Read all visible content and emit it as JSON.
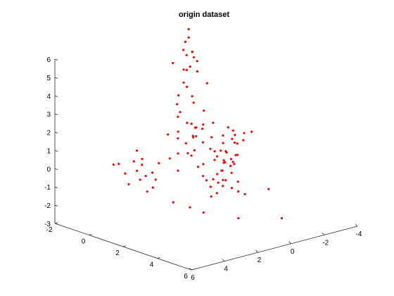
{
  "chart_data": {
    "type": "scatter",
    "projection": "3d",
    "title": "origin dataset",
    "xlabel": "",
    "ylabel": "",
    "zlabel": "",
    "grid": false,
    "legend": "none",
    "marker_color": "#ff0000",
    "x_axis": {
      "lim": [
        -2,
        6
      ],
      "ticks": [
        "-2",
        "0",
        "2",
        "4",
        "6"
      ]
    },
    "y_axis": {
      "lim": [
        -4,
        6
      ],
      "ticks": [
        "-4",
        "-2",
        "0",
        "2",
        "4",
        "6"
      ]
    },
    "z_axis": {
      "lim": [
        -3,
        6
      ],
      "ticks": [
        "-3",
        "-2",
        "-1",
        "0",
        "1",
        "2",
        "3",
        "4",
        "5",
        "6"
      ]
    },
    "series": [
      {
        "points": [
          [
            0.1,
            0.1,
            6.9
          ],
          [
            0.0,
            0.2,
            6.2
          ],
          [
            0.6,
            0.4,
            5.9
          ],
          [
            -0.5,
            -0.2,
            5.5
          ],
          [
            0.3,
            0.0,
            5.4
          ],
          [
            0.8,
            0.6,
            6.0
          ],
          [
            -0.3,
            -0.4,
            4.6
          ],
          [
            0.4,
            -0.1,
            5.2
          ],
          [
            0.0,
            0.3,
            4.7
          ],
          [
            -0.6,
            -0.5,
            4.3
          ],
          [
            0.7,
            0.2,
            4.8
          ],
          [
            0.2,
            0.5,
            4.1
          ],
          [
            -0.2,
            -0.1,
            3.6
          ],
          [
            0.5,
            0.3,
            3.4
          ],
          [
            0.1,
            -0.2,
            2.8
          ],
          [
            -0.4,
            0.1,
            2.2
          ],
          [
            0.6,
            -0.3,
            2.5
          ],
          [
            0.3,
            0.4,
            1.9
          ],
          [
            -0.1,
            -0.5,
            1.3
          ],
          [
            0.9,
            0.1,
            1.7
          ],
          [
            0.2,
            0.2,
            6.5
          ],
          [
            -0.8,
            -0.7,
            5.0
          ],
          [
            0.5,
            -0.6,
            3.9
          ],
          [
            0.0,
            0.7,
            2.9
          ],
          [
            -0.3,
            0.3,
            3.2
          ],
          [
            -1.5,
            -2.0,
            0.5
          ],
          [
            -1.2,
            -1.4,
            -0.8
          ],
          [
            -0.9,
            -1.8,
            0.9
          ],
          [
            -1.6,
            -1.0,
            1.3
          ],
          [
            -1.3,
            -2.2,
            -0.3
          ],
          [
            -1.0,
            -1.6,
            -1.4
          ],
          [
            -1.8,
            -1.2,
            0.0
          ],
          [
            -0.7,
            -2.1,
            0.2
          ],
          [
            -1.4,
            -0.8,
            -0.6
          ],
          [
            -1.1,
            -1.3,
            1.0
          ],
          [
            -1.7,
            -1.7,
            -0.9
          ],
          [
            -0.8,
            -1.1,
            0.4
          ],
          [
            -1.9,
            -2.4,
            -0.2
          ],
          [
            -0.6,
            -1.5,
            -1.1
          ],
          [
            -1.2,
            -0.6,
            0.7
          ],
          [
            -2.0,
            -1.9,
            -0.5
          ],
          [
            -1.0,
            -2.5,
            0.8
          ],
          [
            -1.5,
            -0.9,
            -1.6
          ],
          [
            -0.9,
            -2.0,
            -2.2
          ],
          [
            -1.3,
            -1.6,
            0.2
          ],
          [
            0.8,
            -1.3,
            -0.4
          ],
          [
            1.2,
            -1.0,
            0.3
          ],
          [
            0.5,
            -1.6,
            -0.7
          ],
          [
            1.5,
            -1.4,
            0.1
          ],
          [
            0.9,
            -0.8,
            -1.0
          ],
          [
            1.1,
            -1.8,
            0.5
          ],
          [
            0.6,
            -1.1,
            -0.2
          ],
          [
            1.4,
            -0.6,
            -0.6
          ],
          [
            0.7,
            -1.9,
            0.6
          ],
          [
            1.0,
            -1.2,
            -1.4
          ],
          [
            1.3,
            -1.5,
            0.0
          ],
          [
            0.4,
            -0.9,
            0.2
          ],
          [
            1.6,
            -1.1,
            -0.3
          ],
          [
            0.8,
            -1.7,
            -0.8
          ],
          [
            1.2,
            -0.7,
            0.4
          ],
          [
            2.5,
            0.5,
            -0.5
          ],
          [
            2.8,
            0.9,
            0.2
          ],
          [
            2.2,
            0.2,
            -1.0
          ],
          [
            3.0,
            1.3,
            -0.3
          ],
          [
            2.6,
            0.0,
            0.4
          ],
          [
            2.4,
            1.1,
            -1.3
          ],
          [
            3.1,
            0.6,
            0.1
          ],
          [
            2.7,
            -0.2,
            -0.7
          ],
          [
            2.3,
            0.8,
            0.6
          ],
          [
            2.9,
            1.5,
            -0.1
          ],
          [
            3.3,
            0.4,
            -0.9
          ],
          [
            2.1,
            -0.4,
            0.3
          ],
          [
            3.5,
            1.0,
            -0.5
          ],
          [
            2.5,
            1.7,
            0.0
          ],
          [
            3.2,
            -0.1,
            -1.2
          ],
          [
            -0.5,
            2.3,
            -0.2
          ],
          [
            0.0,
            2.8,
            0.4
          ],
          [
            -0.8,
            3.0,
            -0.6
          ],
          [
            0.3,
            2.1,
            0.1
          ],
          [
            -0.2,
            3.4,
            -0.9
          ],
          [
            -0.6,
            2.5,
            0.6
          ],
          [
            0.5,
            3.1,
            -0.3
          ],
          [
            0.1,
            2.6,
            -1.4
          ],
          [
            -0.9,
            3.6,
            0.0
          ],
          [
            0.4,
            2.4,
            -0.7
          ],
          [
            -0.3,
            3.9,
            0.3
          ],
          [
            0.7,
            2.9,
            -0.1
          ],
          [
            -0.7,
            2.2,
            -1.1
          ],
          [
            0.2,
            3.5,
            0.5
          ],
          [
            -0.4,
            2.7,
            -0.4
          ],
          [
            -0.9,
            -3.0,
            -0.4
          ],
          [
            -0.5,
            -3.3,
            0.1
          ],
          [
            -1.2,
            -2.8,
            -0.9
          ],
          [
            -0.3,
            -3.6,
            -0.2
          ],
          [
            -0.7,
            -3.1,
            0.5
          ],
          [
            -1.0,
            -3.8,
            -0.6
          ],
          [
            -0.4,
            -2.6,
            -1.2
          ],
          [
            -0.8,
            -3.5,
            0.2
          ],
          [
            -1.1,
            -3.2,
            -0.1
          ],
          [
            -0.6,
            -2.9,
            -0.8
          ],
          [
            4.0,
            -1.5,
            -2.6
          ],
          [
            1.5,
            -1.8,
            1.2
          ],
          [
            -1.8,
            -0.9,
            4.2
          ],
          [
            3.8,
            2.2,
            -0.4
          ],
          [
            3.4,
            2.6,
            -1.5
          ],
          [
            2.0,
            3.3,
            2.5
          ],
          [
            2.7,
            3.7,
            -0.9
          ],
          [
            1.8,
            4.0,
            -0.3
          ],
          [
            4.2,
            -0.5,
            -0.7
          ],
          [
            -0.2,
            -4.0,
            0.2
          ],
          [
            3.6,
            0.7,
            -2.2
          ],
          [
            1.9,
            1.6,
            1.2
          ],
          [
            -1.3,
            -0.2,
            -0.7
          ],
          [
            0.9,
            -0.4,
            -1.6
          ],
          [
            2.9,
            2.9,
            -1.3
          ]
        ]
      }
    ]
  }
}
